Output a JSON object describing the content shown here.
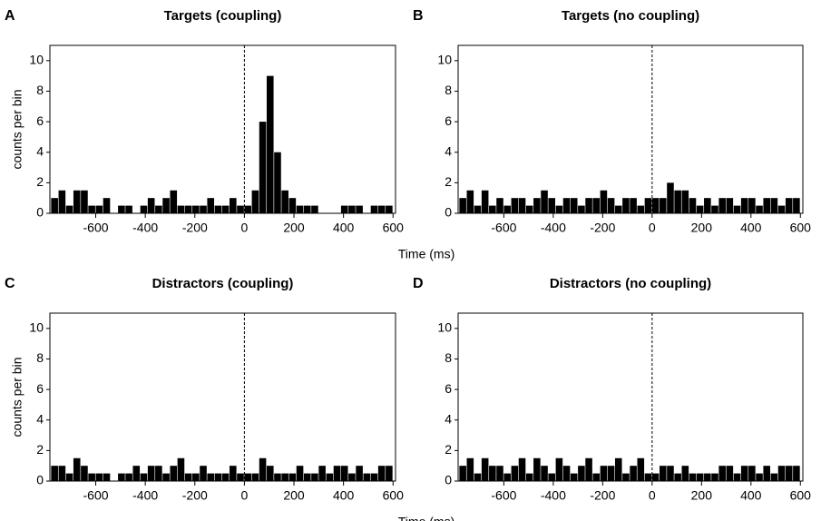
{
  "chart_data": [
    {
      "type": "histogram",
      "panel_label": "A",
      "title": "Targets (coupling)",
      "ylabel": "counts per bin",
      "xlabel": "Time (ms)",
      "bins": [
        -780,
        -750,
        -720,
        -690,
        -660,
        -630,
        -600,
        -570,
        -540,
        -510,
        -480,
        -450,
        -420,
        -390,
        -360,
        -330,
        -300,
        -270,
        -240,
        -210,
        -180,
        -150,
        -120,
        -90,
        -60,
        -30,
        0,
        30,
        60,
        90,
        120,
        150,
        180,
        210,
        240,
        270,
        300,
        330,
        360,
        390,
        420,
        450,
        480,
        510,
        540,
        570,
        600
      ],
      "values": [
        1,
        1.5,
        0.5,
        1.5,
        1.5,
        0.5,
        0.5,
        1,
        0,
        0.5,
        0.5,
        0,
        0.5,
        1,
        0.5,
        1,
        1.5,
        0.5,
        0.5,
        0.5,
        0.5,
        1,
        0.5,
        0.5,
        1,
        0.5,
        0.5,
        1.5,
        6,
        9,
        4,
        1.5,
        1,
        0.5,
        0.5,
        0.5,
        0,
        0,
        0,
        0.5,
        0.5,
        0.5,
        0,
        0.5,
        0.5,
        0.5
      ],
      "color": "#000000",
      "reference_line_x": 0,
      "xlim": [
        -785,
        610
      ],
      "ylim": [
        0,
        11
      ],
      "xticks": [
        -600,
        -400,
        -200,
        0,
        200,
        400,
        600
      ],
      "yticks": [
        0,
        2,
        4,
        6,
        8,
        10
      ]
    },
    {
      "type": "histogram",
      "panel_label": "B",
      "title": "Targets (no coupling)",
      "bins": [
        -780,
        -750,
        -720,
        -690,
        -660,
        -630,
        -600,
        -570,
        -540,
        -510,
        -480,
        -450,
        -420,
        -390,
        -360,
        -330,
        -300,
        -270,
        -240,
        -210,
        -180,
        -150,
        -120,
        -90,
        -60,
        -30,
        0,
        30,
        60,
        90,
        120,
        150,
        180,
        210,
        240,
        270,
        300,
        330,
        360,
        390,
        420,
        450,
        480,
        510,
        540,
        570,
        600
      ],
      "values": [
        1,
        1.5,
        0.5,
        1.5,
        0.5,
        1,
        0.5,
        1,
        1,
        0.5,
        1,
        1.5,
        1,
        0.5,
        1,
        1,
        0.5,
        1,
        1,
        1.5,
        1,
        0.5,
        1,
        1,
        0.5,
        1,
        1,
        1,
        2,
        1.5,
        1.5,
        1,
        0.5,
        1,
        0.5,
        1,
        1,
        0.5,
        1,
        1,
        0.5,
        1,
        1,
        0.5,
        1,
        1
      ],
      "color": "#000000",
      "reference_line_x": 0,
      "xlim": [
        -785,
        610
      ],
      "ylim": [
        0,
        11
      ],
      "xticks": [
        -600,
        -400,
        -200,
        0,
        200,
        400,
        600
      ],
      "yticks": [
        0,
        2,
        4,
        6,
        8,
        10
      ]
    },
    {
      "type": "histogram",
      "panel_label": "C",
      "title": "Distractors (coupling)",
      "ylabel": "counts per bin",
      "xlabel": "Time (ms)",
      "bins": [
        -780,
        -750,
        -720,
        -690,
        -660,
        -630,
        -600,
        -570,
        -540,
        -510,
        -480,
        -450,
        -420,
        -390,
        -360,
        -330,
        -300,
        -270,
        -240,
        -210,
        -180,
        -150,
        -120,
        -90,
        -60,
        -30,
        0,
        30,
        60,
        90,
        120,
        150,
        180,
        210,
        240,
        270,
        300,
        330,
        360,
        390,
        420,
        450,
        480,
        510,
        540,
        570,
        600
      ],
      "values": [
        1,
        1,
        0.5,
        1.5,
        1,
        0.5,
        0.5,
        0.5,
        0,
        0.5,
        0.5,
        1,
        0.5,
        1,
        1,
        0.5,
        1,
        1.5,
        0.5,
        0.5,
        1,
        0.5,
        0.5,
        0.5,
        1,
        0.5,
        0.5,
        0.5,
        1.5,
        1,
        0.5,
        0.5,
        0.5,
        1,
        0.5,
        0.5,
        1,
        0.5,
        1,
        1,
        0.5,
        1,
        0.5,
        0.5,
        1,
        1
      ],
      "color": "#000000",
      "reference_line_x": 0,
      "xlim": [
        -785,
        610
      ],
      "ylim": [
        0,
        11
      ],
      "xticks": [
        -600,
        -400,
        -200,
        0,
        200,
        400,
        600
      ],
      "yticks": [
        0,
        2,
        4,
        6,
        8,
        10
      ]
    },
    {
      "type": "histogram",
      "panel_label": "D",
      "title": "Distractors (no coupling)",
      "bins": [
        -780,
        -750,
        -720,
        -690,
        -660,
        -630,
        -600,
        -570,
        -540,
        -510,
        -480,
        -450,
        -420,
        -390,
        -360,
        -330,
        -300,
        -270,
        -240,
        -210,
        -180,
        -150,
        -120,
        -90,
        -60,
        -30,
        0,
        30,
        60,
        90,
        120,
        150,
        180,
        210,
        240,
        270,
        300,
        330,
        360,
        390,
        420,
        450,
        480,
        510,
        540,
        570,
        600
      ],
      "values": [
        1,
        1.5,
        0.5,
        1.5,
        1,
        1,
        0.5,
        1,
        1.5,
        0.5,
        1.5,
        1,
        0.5,
        1.5,
        1,
        0.5,
        1,
        1.5,
        0.5,
        1,
        1,
        1.5,
        0.5,
        1,
        1.5,
        0.5,
        0.5,
        1,
        1,
        0.5,
        1,
        0.5,
        0.5,
        0.5,
        0.5,
        1,
        1,
        0.5,
        1,
        1,
        0.5,
        1,
        0.5,
        1,
        1,
        1
      ],
      "color": "#000000",
      "reference_line_x": 0,
      "xlim": [
        -785,
        610
      ],
      "ylim": [
        0,
        11
      ],
      "xticks": [
        -600,
        -400,
        -200,
        0,
        200,
        400,
        600
      ],
      "yticks": [
        0,
        2,
        4,
        6,
        8,
        10
      ]
    }
  ]
}
